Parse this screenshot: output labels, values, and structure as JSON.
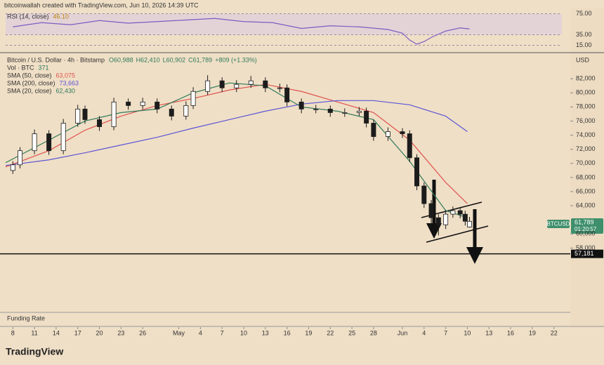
{
  "header": {
    "credit": "bitcoinwallah created with TradingView.com, Jun 10, 2026 14:39 UTC",
    "brand": "TradingView",
    "funding": "Funding Rate",
    "currency": "USD",
    "symbol_tag": "BTCUSD",
    "last_price": "61,789",
    "countdown": "01:20:57"
  },
  "chart_data": [
    {
      "type": "candlestick",
      "title": "Bitcoin / U.S. Dollar · 4h · Bitstamp",
      "ohlc_labels": [
        "O60,988",
        "H62,410",
        "L60,902",
        "C61,789",
        "+809 (+1.33%)"
      ],
      "volume_label": "Vol · BTC",
      "volume_value": "371",
      "up_color": "#ffffff",
      "down_color": "#1c1c1c",
      "xlim": [
        -1,
        76.1
      ],
      "ylim": [
        56150,
        84800
      ],
      "xticks": [
        {
          "value": 0,
          "label": "8"
        },
        {
          "value": 3,
          "label": "11"
        },
        {
          "value": 6,
          "label": "14"
        },
        {
          "value": 9,
          "label": "17"
        },
        {
          "value": 12,
          "label": "20"
        },
        {
          "value": 15,
          "label": "23"
        },
        {
          "value": 18,
          "label": "26"
        },
        {
          "value": 23,
          "label": "May"
        },
        {
          "value": 26,
          "label": "4"
        },
        {
          "value": 29,
          "label": "7"
        },
        {
          "value": 32,
          "label": "10"
        },
        {
          "value": 35,
          "label": "13"
        },
        {
          "value": 38,
          "label": "16"
        },
        {
          "value": 41,
          "label": "19"
        },
        {
          "value": 44,
          "label": "22"
        },
        {
          "value": 47,
          "label": "25"
        },
        {
          "value": 50,
          "label": "28"
        },
        {
          "value": 54,
          "label": "Jun"
        },
        {
          "value": 57,
          "label": "4"
        },
        {
          "value": 60,
          "label": "7"
        },
        {
          "value": 63,
          "label": "10"
        },
        {
          "value": 66,
          "label": "13"
        },
        {
          "value": 69,
          "label": "16"
        },
        {
          "value": 72,
          "label": "19"
        },
        {
          "value": 75,
          "label": "22"
        }
      ],
      "yticks": [
        {
          "value": 82000,
          "label": "82,000"
        },
        {
          "value": 80000,
          "label": "80,000"
        },
        {
          "value": 78000,
          "label": "78,000"
        },
        {
          "value": 76000,
          "label": "76,000"
        },
        {
          "value": 74000,
          "label": "74,000"
        },
        {
          "value": 72000,
          "label": "72,000"
        },
        {
          "value": 70000,
          "label": "70,000"
        },
        {
          "value": 68000,
          "label": "68,000"
        },
        {
          "value": 66000,
          "label": "66,000"
        },
        {
          "value": 64000,
          "label": "64,000"
        },
        {
          "value": 60000,
          "label": "60,000"
        },
        {
          "value": 58000,
          "label": "58,000"
        }
      ],
      "support": {
        "value": 57181,
        "label": "57,181"
      },
      "x": [
        0,
        1,
        3,
        5,
        7,
        9,
        10,
        12,
        14,
        16,
        18,
        20,
        22,
        24,
        25,
        27,
        29,
        31,
        33,
        35,
        37,
        38,
        40,
        42,
        44,
        46,
        48,
        49,
        50,
        52,
        54,
        55,
        56,
        57,
        58,
        59,
        60,
        61,
        62,
        62.7,
        63.3
      ],
      "open": [
        69000,
        69800,
        71800,
        74200,
        71800,
        75700,
        77700,
        76200,
        75200,
        78700,
        78200,
        78700,
        77700,
        76700,
        78200,
        80200,
        81700,
        80700,
        81200,
        81700,
        80700,
        80700,
        78700,
        77700,
        77700,
        77200,
        77200,
        77400,
        75700,
        73800,
        74500,
        74200,
        70800,
        66800,
        64300,
        62300,
        61300,
        62800,
        63300,
        62800,
        60988
      ],
      "high": [
        70300,
        72300,
        74800,
        74700,
        76300,
        78300,
        78200,
        76700,
        79300,
        79200,
        79300,
        79200,
        78200,
        78800,
        80800,
        82500,
        82200,
        81800,
        82400,
        82200,
        81300,
        81200,
        79200,
        78300,
        78200,
        77800,
        78000,
        77900,
        76200,
        75100,
        75000,
        74700,
        71300,
        67300,
        64800,
        62800,
        63400,
        63900,
        63800,
        63300,
        62410
      ],
      "low": [
        68500,
        69300,
        71300,
        71200,
        71300,
        75200,
        75600,
        74600,
        74700,
        77600,
        77700,
        77100,
        76100,
        76200,
        77700,
        79700,
        80100,
        80100,
        80700,
        80100,
        80100,
        78100,
        77100,
        77100,
        76600,
        76600,
        76700,
        75100,
        73200,
        73200,
        73600,
        70200,
        66200,
        63700,
        61000,
        59800,
        60700,
        62300,
        62200,
        61200,
        60902
      ],
      "close": [
        69800,
        71800,
        74200,
        71800,
        75700,
        77700,
        76200,
        75200,
        78700,
        78200,
        78700,
        77700,
        76700,
        78200,
        80200,
        81700,
        80700,
        81200,
        81700,
        80700,
        80700,
        78700,
        77700,
        77700,
        77200,
        77200,
        77400,
        75700,
        73800,
        74500,
        74200,
        70800,
        66800,
        64300,
        62300,
        61300,
        62800,
        63300,
        62800,
        61800,
        61789
      ],
      "series": [
        {
          "name": "SMA (50, close)",
          "value_label": "63,075",
          "color": "#e0524f",
          "x": [
            -1,
            5,
            10,
            15,
            20,
            25,
            30,
            35,
            40,
            45,
            50,
            55,
            60,
            63
          ],
          "values": [
            69500,
            71800,
            74700,
            76700,
            78200,
            79200,
            80400,
            81200,
            80200,
            78700,
            77200,
            73300,
            67300,
            64300
          ]
        },
        {
          "name": "SMA (200, close)",
          "value_label": "73,663",
          "color": "#5c55d6",
          "x": [
            -1,
            5,
            10,
            15,
            20,
            25,
            30,
            35,
            40,
            45,
            50,
            55,
            60,
            63
          ],
          "values": [
            69700,
            70500,
            71500,
            72600,
            73700,
            75000,
            76200,
            77400,
            78400,
            78900,
            78900,
            78300,
            76700,
            74500
          ]
        },
        {
          "name": "SMA (20, close)",
          "value_label": "62,430",
          "color": "#2f7a5a",
          "x": [
            -1,
            5,
            10,
            15,
            20,
            25,
            30,
            35,
            40,
            45,
            50,
            55,
            60,
            63
          ],
          "values": [
            70100,
            73300,
            76000,
            77200,
            77700,
            80000,
            81400,
            81000,
            78000,
            77400,
            76200,
            70300,
            63300,
            62300
          ]
        }
      ]
    },
    {
      "type": "line",
      "title": "RSI (14, close)",
      "value_label": "46.10",
      "xlim": [
        -1,
        76.1
      ],
      "ylim": [
        5,
        85
      ],
      "yticks": [
        {
          "value": 75,
          "label": "75.00"
        },
        {
          "value": 35,
          "label": "35.00"
        },
        {
          "value": 15,
          "label": "15.00"
        }
      ],
      "grid": true,
      "series": [
        {
          "name": "RSI",
          "color": "#7b5cc4",
          "x": [
            0,
            4,
            8,
            12,
            16,
            20,
            24,
            28,
            32,
            36,
            40,
            44,
            48,
            52,
            54,
            55,
            56,
            57,
            58,
            60,
            62,
            63.3
          ],
          "values": [
            50,
            58,
            54,
            62,
            57,
            60,
            63,
            66,
            60,
            58,
            47,
            52,
            50,
            45,
            38,
            25,
            17,
            22,
            30,
            42,
            48,
            46
          ]
        }
      ]
    }
  ]
}
